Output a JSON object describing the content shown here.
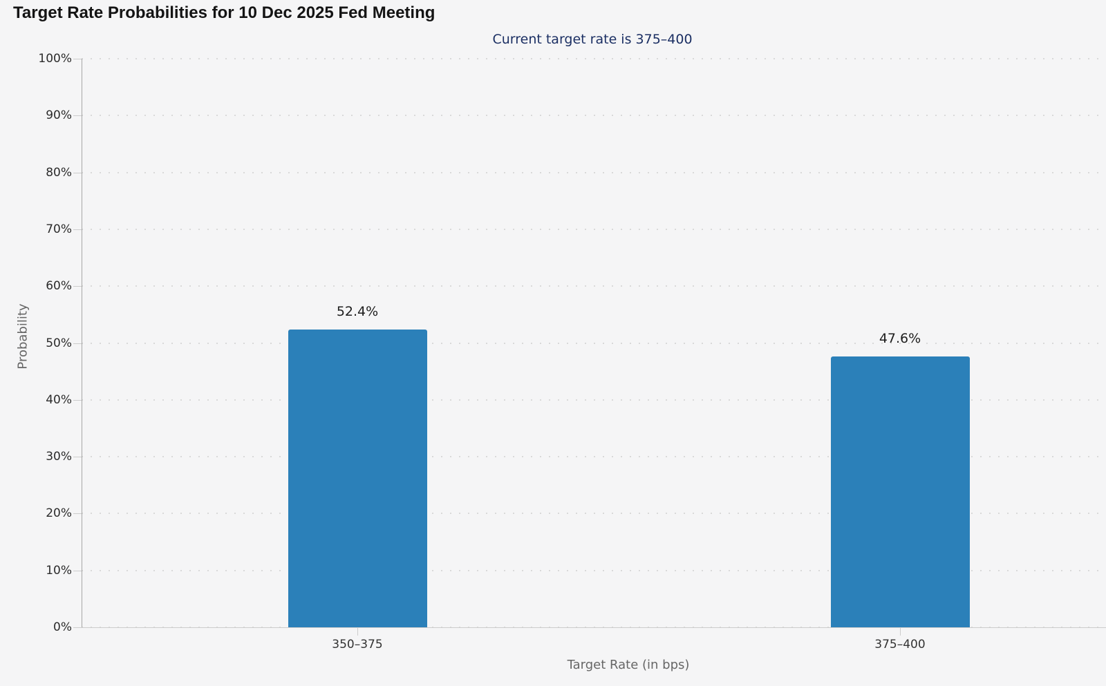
{
  "page": {
    "background": "#f5f5f6"
  },
  "chart_data": {
    "type": "bar",
    "title": "Target Rate Probabilities for 10 Dec 2025 Fed Meeting",
    "subtitle": "Current target rate is 375–400",
    "categories": [
      "350–375",
      "375–400"
    ],
    "values": [
      52.4,
      47.6
    ],
    "data_labels": [
      "52.4%",
      "47.6%"
    ],
    "xlabel": "Target Rate (in bps)",
    "ylabel": "Probability",
    "ylim": [
      0,
      100
    ],
    "ytick_step": 10,
    "ytick_labels": [
      "0%",
      "10%",
      "20%",
      "30%",
      "40%",
      "50%",
      "60%",
      "70%",
      "80%",
      "90%",
      "100%"
    ],
    "legend": "none",
    "grid": "horizontal-dotted",
    "colors": {
      "bar": "#2b80b9",
      "subtitle_text": "#1b2f63",
      "title_text": "#141414",
      "axis_title_text": "#666666",
      "tick_label_text": "#2b2b2b",
      "gridline": "#d9d9d9",
      "y_axis_line": "#a6a6a6",
      "x_axis_line": "#cccccc"
    }
  }
}
